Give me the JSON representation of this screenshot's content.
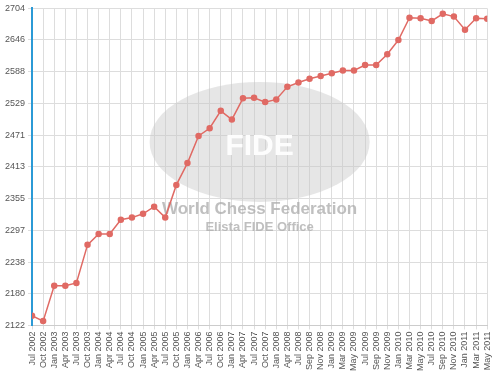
{
  "chart_data": {
    "type": "line",
    "annotations": [
      "FIDE",
      "World Chess Federation",
      "Elista FIDE Office"
    ],
    "categories": [
      "Jul 2002",
      "Oct 2002",
      "Jan 2003",
      "Apr 2003",
      "Jul 2003",
      "Oct 2003",
      "Jan 2004",
      "Apr 2004",
      "Jul 2004",
      "Oct 2004",
      "Jan 2005",
      "Apr 2005",
      "Jul 2005",
      "Oct 2005",
      "Jan 2006",
      "Apr 2006",
      "Jul 2006",
      "Oct 2006",
      "Jan 2007",
      "Apr 2007",
      "Jul 2007",
      "Oct 2007",
      "Jan 2008",
      "Apr 2008",
      "Jul 2008",
      "Sep 2008",
      "Nov 2008",
      "Jan 2009",
      "Mar 2009",
      "May 2009",
      "Jul 2009",
      "Sep 2009",
      "Nov 2009",
      "Jan 2010",
      "Mar 2010",
      "May 2010",
      "Jul 2010",
      "Sep 2010",
      "Nov 2010",
      "Jan 2011",
      "Mar 2011",
      "May 2011"
    ],
    "values": [
      2140,
      2130,
      2195,
      2195,
      2200,
      2270,
      2290,
      2290,
      2316,
      2320,
      2327,
      2340,
      2320,
      2380,
      2420,
      2470,
      2484,
      2516,
      2500,
      2539,
      2540,
      2532,
      2537,
      2560,
      2568,
      2575,
      2580,
      2585,
      2590,
      2590,
      2600,
      2600,
      2620,
      2646,
      2687,
      2686,
      2681,
      2694,
      2689,
      2665,
      2686,
      2685
    ],
    "color": "#e06a64",
    "marker": "circle",
    "ylim": [
      2122,
      2704
    ],
    "yticks": [
      2122,
      2180,
      2238,
      2297,
      2355,
      2413,
      2471,
      2529,
      2588,
      2646,
      2704
    ],
    "grid": true
  }
}
